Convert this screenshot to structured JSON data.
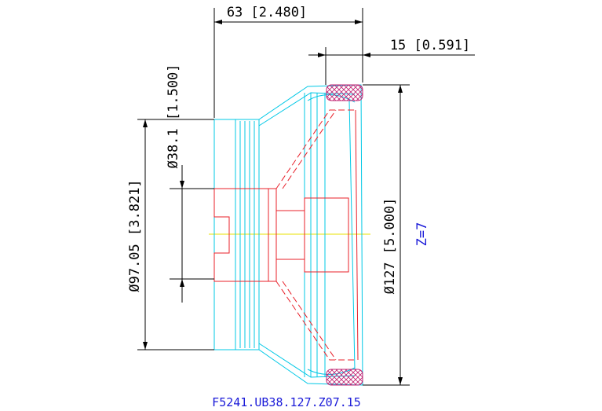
{
  "dimensions": [
    {
      "label": "63 [2.480]"
    },
    {
      "label": "15 [0.591]"
    },
    {
      "label": "Ø38.1 [1.500]"
    },
    {
      "label": "Ø97.05 [3.821]"
    },
    {
      "label": "Ø127 [5.000]"
    }
  ],
  "annotation": "Z=7",
  "part_number": "F5241.UB38.127.Z07.15"
}
